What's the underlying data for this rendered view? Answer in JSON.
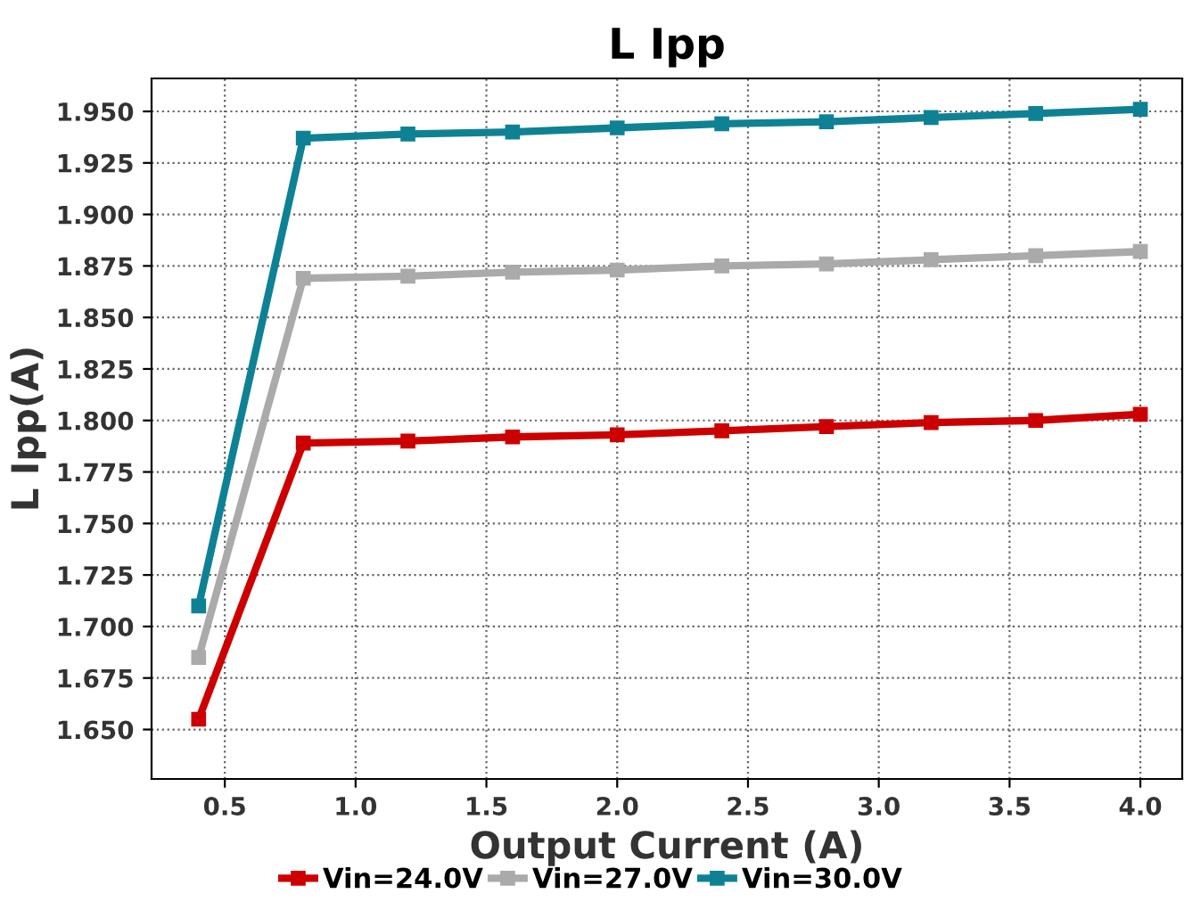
{
  "chart_data": {
    "type": "line",
    "title": "L Ipp",
    "xlabel": "Output Current (A)",
    "ylabel": "L Ipp(A)",
    "x": [
      0.4,
      0.8,
      1.2,
      1.6,
      2.0,
      2.4,
      2.8,
      3.2,
      3.6,
      4.0
    ],
    "series": [
      {
        "name": "Vin=24.0V",
        "color": "#cc0000",
        "values": [
          1.655,
          1.789,
          1.79,
          1.792,
          1.793,
          1.795,
          1.797,
          1.799,
          1.8,
          1.803
        ]
      },
      {
        "name": "Vin=27.0V",
        "color": "#aaaaaa",
        "values": [
          1.685,
          1.869,
          1.87,
          1.872,
          1.873,
          1.875,
          1.876,
          1.878,
          1.88,
          1.882
        ]
      },
      {
        "name": "Vin=30.0V",
        "color": "#0e8294",
        "values": [
          1.71,
          1.937,
          1.939,
          1.94,
          1.942,
          1.944,
          1.945,
          1.947,
          1.949,
          1.951
        ]
      }
    ],
    "xlim": [
      0.22,
      4.16
    ],
    "xticks": [
      {
        "value": 0.5,
        "label": "0.5"
      },
      {
        "value": 1.0,
        "label": "1.0"
      },
      {
        "value": 1.5,
        "label": "1.5"
      },
      {
        "value": 2.0,
        "label": "2.0"
      },
      {
        "value": 2.5,
        "label": "2.5"
      },
      {
        "value": 3.0,
        "label": "3.0"
      },
      {
        "value": 3.5,
        "label": "3.5"
      },
      {
        "value": 4.0,
        "label": "4.0"
      }
    ],
    "ylim": [
      1.626,
      1.966
    ],
    "yticks": [
      {
        "value": 1.65,
        "label": "1.650"
      },
      {
        "value": 1.675,
        "label": "1.675"
      },
      {
        "value": 1.7,
        "label": "1.700"
      },
      {
        "value": 1.725,
        "label": "1.725"
      },
      {
        "value": 1.75,
        "label": "1.750"
      },
      {
        "value": 1.775,
        "label": "1.775"
      },
      {
        "value": 1.8,
        "label": "1.800"
      },
      {
        "value": 1.825,
        "label": "1.825"
      },
      {
        "value": 1.85,
        "label": "1.850"
      },
      {
        "value": 1.875,
        "label": "1.875"
      },
      {
        "value": 1.9,
        "label": "1.900"
      },
      {
        "value": 1.925,
        "label": "1.925"
      },
      {
        "value": 1.95,
        "label": "1.950"
      }
    ],
    "grid": true,
    "legend": "bottom",
    "marker": "square",
    "line_style": "solid"
  }
}
